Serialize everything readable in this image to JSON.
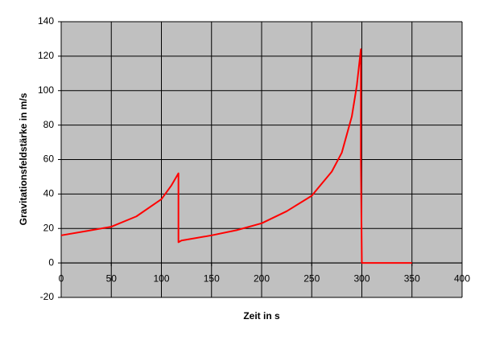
{
  "chart_data": {
    "type": "line",
    "x_label": "Zeit in s",
    "y_label": "Gravitationsfeldstärke in m/s",
    "x": [
      0,
      25,
      50,
      75,
      100,
      110,
      117,
      117,
      120,
      150,
      175,
      200,
      225,
      250,
      270,
      280,
      290,
      295,
      299,
      299,
      300,
      350
    ],
    "values": [
      16,
      18.5,
      21,
      27,
      37,
      45,
      52,
      12,
      13,
      16,
      19,
      23,
      30,
      39,
      53,
      64,
      85,
      103,
      124,
      62,
      0,
      0
    ],
    "color": "#ff0000",
    "xlim": [
      0,
      400
    ],
    "xticks": [
      0,
      50,
      100,
      150,
      200,
      250,
      300,
      350,
      400
    ],
    "ylim": [
      -20,
      140
    ],
    "yticks": [
      -20,
      0,
      20,
      40,
      60,
      80,
      100,
      120,
      140
    ],
    "grid": true,
    "plot_background": "#c0c0c0"
  }
}
